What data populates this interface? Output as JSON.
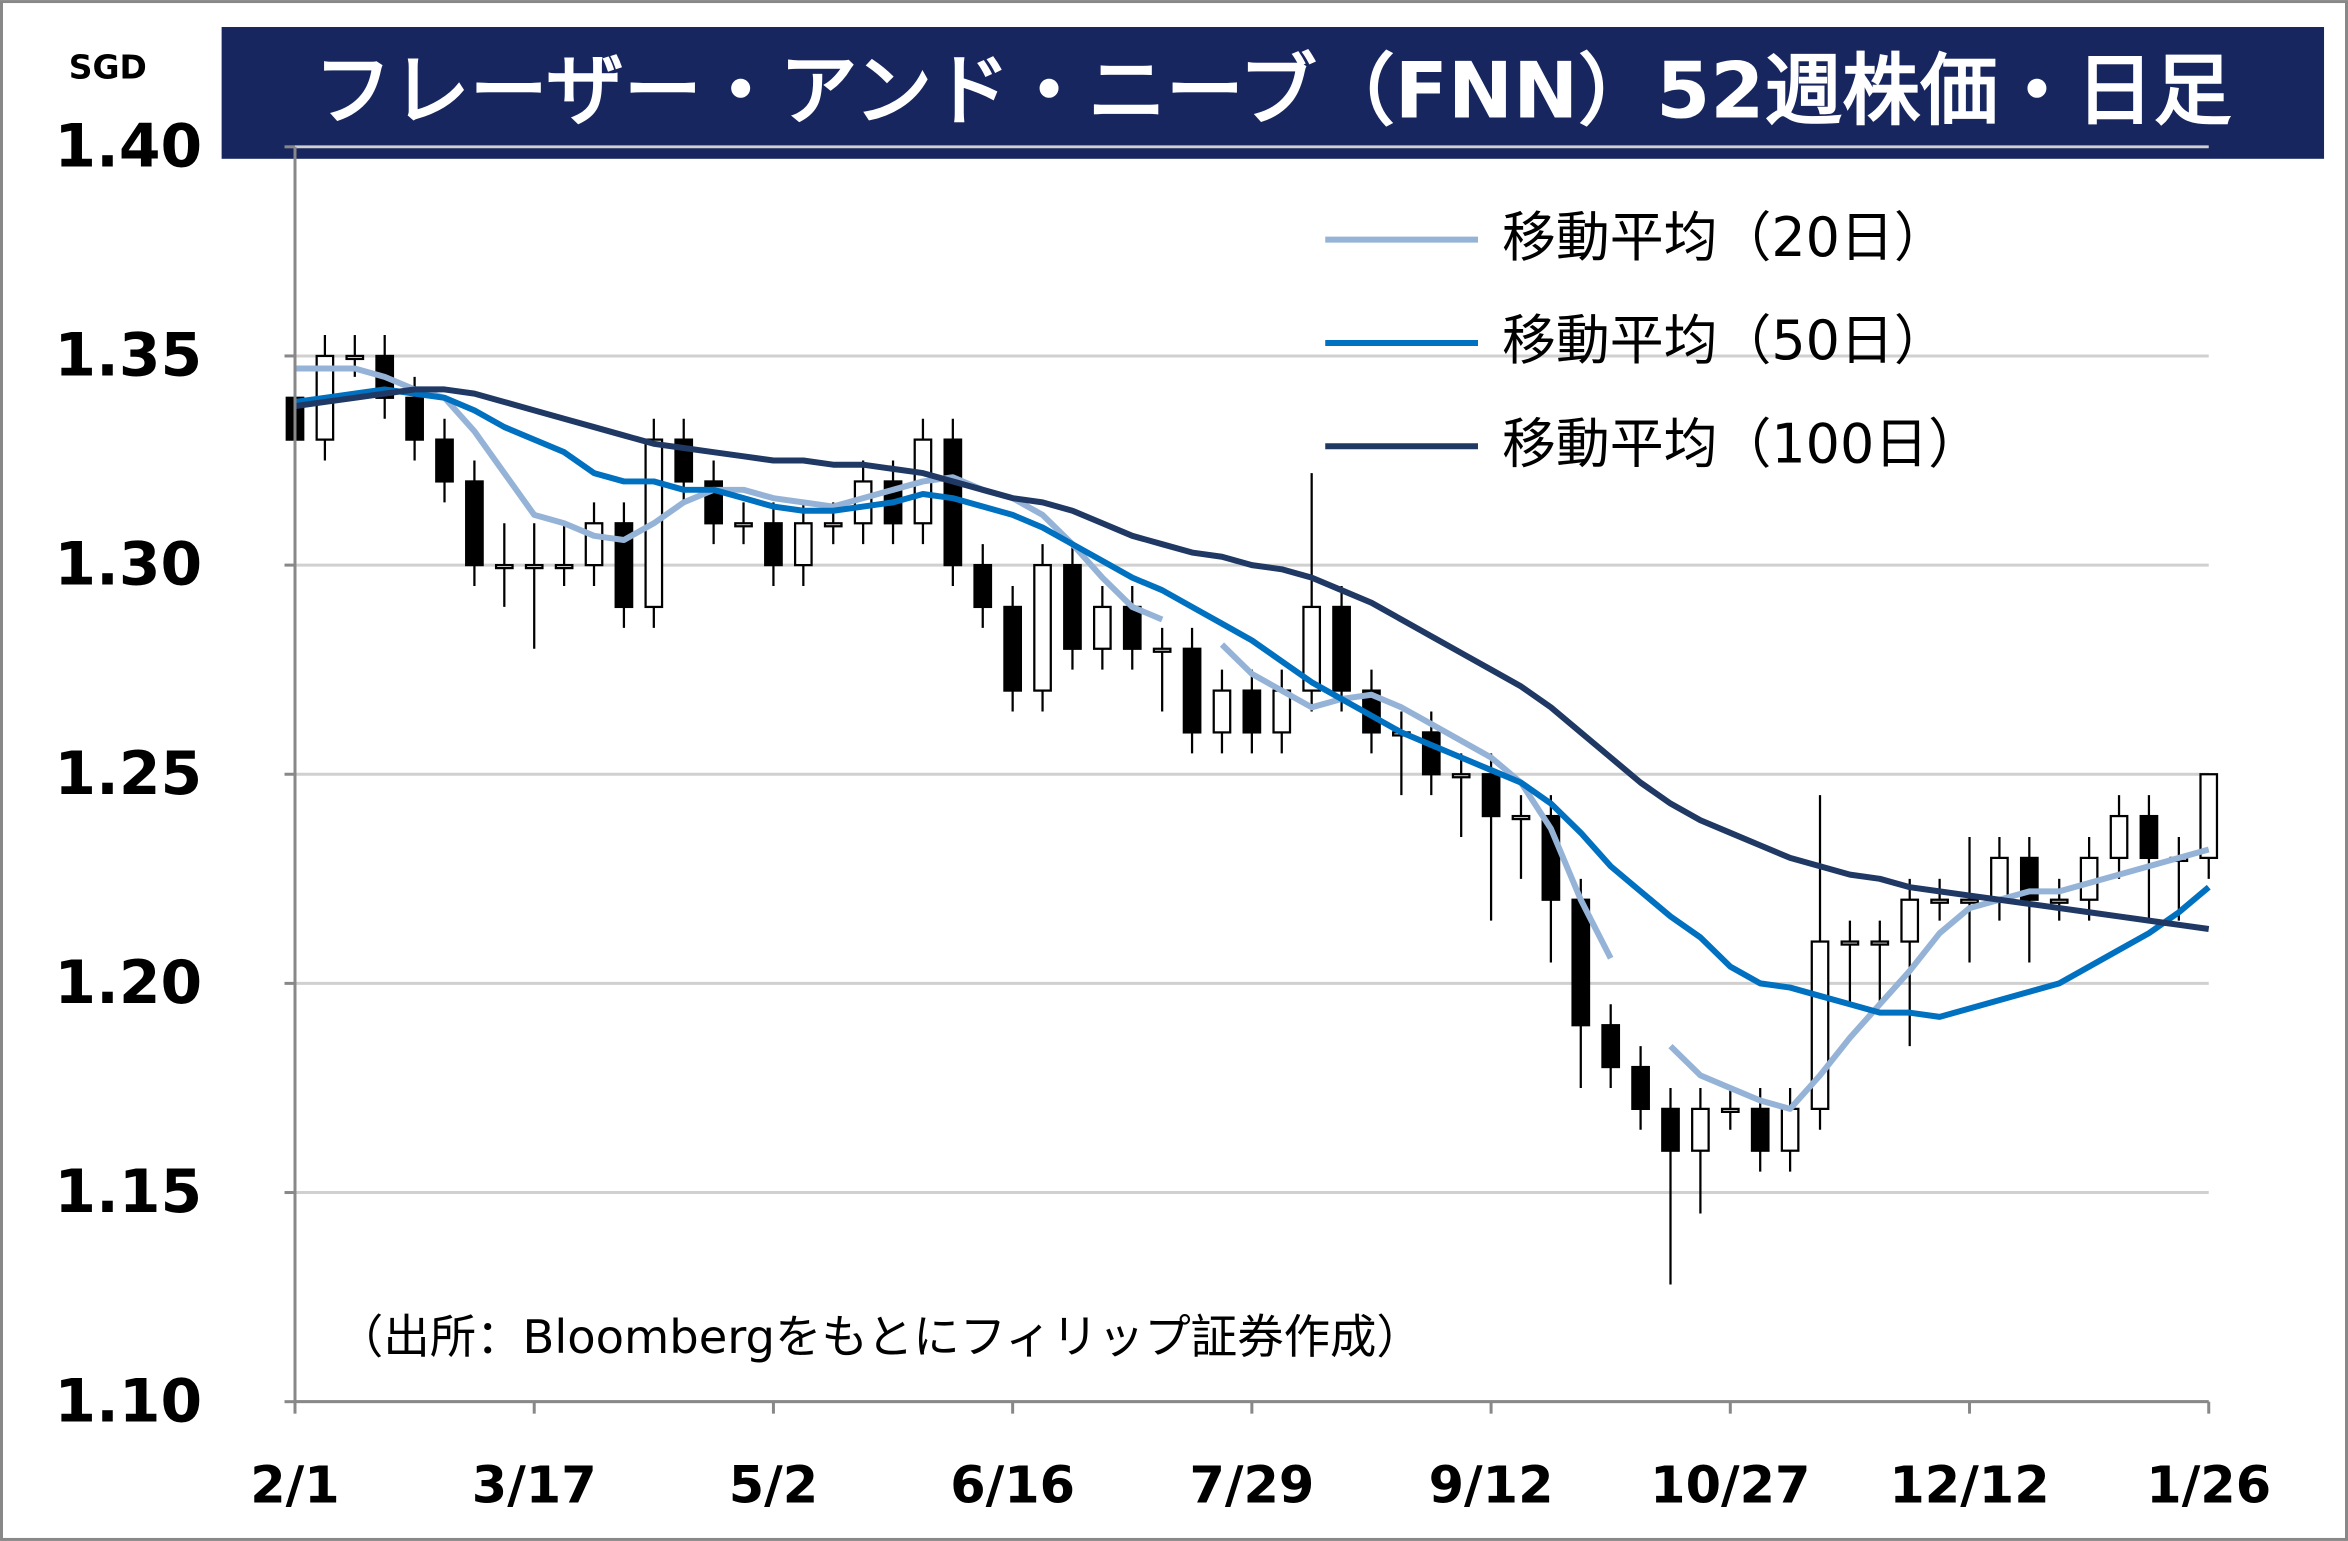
{
  "chart_data": {
    "type": "candlestick",
    "title": "フレーザー・アンド・ニーブ（FNN）52週株価・日足",
    "y_unit": "SGD",
    "source_note": "（出所：Bloombergをもとにフィリップ証券作成）",
    "categories": [
      "2/1",
      null,
      null,
      null,
      null,
      null,
      null,
      null,
      "3/17",
      null,
      null,
      null,
      null,
      null,
      null,
      null,
      "5/2",
      null,
      null,
      null,
      null,
      null,
      null,
      null,
      "6/16",
      null,
      null,
      null,
      null,
      null,
      null,
      null,
      "7/29",
      null,
      null,
      null,
      null,
      null,
      null,
      null,
      "9/12",
      null,
      null,
      null,
      null,
      null,
      null,
      null,
      "10/27",
      null,
      null,
      null,
      null,
      null,
      null,
      null,
      "12/12",
      null,
      null,
      null,
      null,
      null,
      null,
      null,
      "1/26"
    ],
    "open": [
      1.34,
      1.33,
      1.35,
      1.35,
      1.34,
      1.33,
      1.32,
      1.3,
      1.3,
      1.3,
      1.3,
      1.31,
      1.29,
      1.33,
      1.32,
      1.31,
      1.31,
      1.3,
      1.31,
      1.31,
      1.32,
      1.31,
      1.33,
      1.3,
      1.29,
      1.27,
      1.3,
      1.28,
      1.29,
      1.28,
      1.28,
      1.26,
      1.27,
      1.26,
      1.27,
      1.29,
      1.27,
      1.26,
      1.26,
      1.25,
      1.25,
      1.24,
      1.24,
      1.22,
      1.19,
      1.18,
      1.17,
      1.16,
      1.17,
      1.17,
      1.16,
      1.17,
      1.21,
      1.21,
      1.21,
      1.22,
      1.22,
      1.22,
      1.23,
      1.22,
      1.22,
      1.23,
      1.24,
      1.23,
      1.23
    ],
    "high": [
      1.345,
      1.355,
      1.355,
      1.355,
      1.345,
      1.335,
      1.325,
      1.31,
      1.31,
      1.31,
      1.315,
      1.315,
      1.335,
      1.335,
      1.325,
      1.315,
      1.315,
      1.315,
      1.315,
      1.325,
      1.325,
      1.335,
      1.335,
      1.305,
      1.295,
      1.305,
      1.305,
      1.295,
      1.295,
      1.285,
      1.285,
      1.275,
      1.275,
      1.275,
      1.322,
      1.295,
      1.275,
      1.265,
      1.265,
      1.255,
      1.255,
      1.245,
      1.245,
      1.225,
      1.195,
      1.185,
      1.175,
      1.175,
      1.175,
      1.175,
      1.175,
      1.245,
      1.215,
      1.215,
      1.225,
      1.225,
      1.235,
      1.235,
      1.235,
      1.225,
      1.235,
      1.245,
      1.245,
      1.235,
      1.25
    ],
    "low": [
      1.325,
      1.325,
      1.345,
      1.335,
      1.325,
      1.315,
      1.295,
      1.29,
      1.28,
      1.295,
      1.295,
      1.285,
      1.285,
      1.315,
      1.305,
      1.305,
      1.295,
      1.295,
      1.305,
      1.305,
      1.305,
      1.305,
      1.295,
      1.285,
      1.265,
      1.265,
      1.275,
      1.275,
      1.275,
      1.265,
      1.255,
      1.255,
      1.255,
      1.255,
      1.265,
      1.265,
      1.255,
      1.245,
      1.245,
      1.235,
      1.215,
      1.225,
      1.205,
      1.175,
      1.175,
      1.165,
      1.128,
      1.145,
      1.165,
      1.155,
      1.155,
      1.165,
      1.195,
      1.195,
      1.185,
      1.215,
      1.205,
      1.215,
      1.205,
      1.215,
      1.215,
      1.225,
      1.215,
      1.215,
      1.225
    ],
    "close": [
      1.33,
      1.35,
      1.35,
      1.34,
      1.33,
      1.32,
      1.3,
      1.3,
      1.3,
      1.3,
      1.31,
      1.29,
      1.33,
      1.32,
      1.31,
      1.31,
      1.3,
      1.31,
      1.31,
      1.32,
      1.31,
      1.33,
      1.3,
      1.29,
      1.27,
      1.3,
      1.28,
      1.29,
      1.28,
      1.28,
      1.26,
      1.27,
      1.26,
      1.27,
      1.29,
      1.27,
      1.26,
      1.26,
      1.25,
      1.25,
      1.24,
      1.24,
      1.22,
      1.19,
      1.18,
      1.17,
      1.16,
      1.17,
      1.17,
      1.16,
      1.17,
      1.21,
      1.21,
      1.21,
      1.22,
      1.22,
      1.22,
      1.23,
      1.22,
      1.22,
      1.23,
      1.24,
      1.23,
      1.23,
      1.25
    ],
    "up_color": "#ffffff",
    "down_color": "#000000",
    "series": [
      {
        "name": "移動平均（20日）",
        "color": "#95b3d7",
        "values": [
          1.347,
          1.347,
          1.347,
          1.345,
          1.342,
          1.34,
          1.332,
          1.322,
          1.312,
          1.31,
          1.307,
          1.306,
          1.31,
          1.315,
          1.318,
          1.318,
          1.316,
          1.315,
          1.314,
          1.316,
          1.318,
          1.32,
          1.321,
          1.318,
          1.316,
          1.312,
          1.305,
          1.297,
          1.29,
          1.287,
          null,
          1.281,
          1.274,
          1.27,
          1.266,
          1.268,
          1.269,
          1.266,
          1.262,
          1.258,
          1.254,
          1.248,
          1.237,
          1.22,
          1.206,
          null,
          1.185,
          1.178,
          1.175,
          1.172,
          1.17,
          1.178,
          1.187,
          1.195,
          1.203,
          1.212,
          1.218,
          1.22,
          1.222,
          1.222,
          1.224,
          1.226,
          1.228,
          1.23,
          1.232
        ]
      },
      {
        "name": "移動平均（50日）",
        "color": "#0070c0",
        "values": [
          1.339,
          1.34,
          1.341,
          1.342,
          1.341,
          1.34,
          1.337,
          1.333,
          1.33,
          1.327,
          1.322,
          1.32,
          1.32,
          1.318,
          1.318,
          1.316,
          1.314,
          1.313,
          1.313,
          1.314,
          1.315,
          1.317,
          1.316,
          1.314,
          1.312,
          1.309,
          1.305,
          1.301,
          1.297,
          1.294,
          1.29,
          1.286,
          1.282,
          1.277,
          1.272,
          1.268,
          1.264,
          1.26,
          1.257,
          1.254,
          1.251,
          1.248,
          1.243,
          1.236,
          1.228,
          1.222,
          1.216,
          1.211,
          1.204,
          1.2,
          1.199,
          1.197,
          1.195,
          1.193,
          1.193,
          1.192,
          1.194,
          1.196,
          1.198,
          1.2,
          1.204,
          1.208,
          1.212,
          1.217,
          1.223
        ]
      },
      {
        "name": "移動平均（100日）",
        "color": "#1f3864",
        "values": [
          1.338,
          1.339,
          1.34,
          1.341,
          1.342,
          1.342,
          1.341,
          1.339,
          1.337,
          1.335,
          1.333,
          1.331,
          1.329,
          1.328,
          1.327,
          1.326,
          1.325,
          1.325,
          1.324,
          1.324,
          1.323,
          1.322,
          1.32,
          1.318,
          1.316,
          1.315,
          1.313,
          1.31,
          1.307,
          1.305,
          1.303,
          1.302,
          1.3,
          1.299,
          1.297,
          1.294,
          1.291,
          1.287,
          1.283,
          1.279,
          1.275,
          1.271,
          1.266,
          1.26,
          1.254,
          1.248,
          1.243,
          1.239,
          1.236,
          1.233,
          1.23,
          1.228,
          1.226,
          1.225,
          1.223,
          1.222,
          1.221,
          1.22,
          1.219,
          1.218,
          1.217,
          1.216,
          1.215,
          1.214,
          1.213
        ]
      }
    ],
    "ylim": [
      1.1,
      1.4
    ],
    "yticks": [
      {
        "value": 1.4,
        "label": "1.40"
      },
      1.35,
      {
        "value": 1.3,
        "label": "1.30"
      },
      1.25,
      {
        "value": 1.2,
        "label": "1.20"
      },
      1.15,
      {
        "value": 1.1,
        "label": "1.10"
      }
    ],
    "grid": true
  }
}
